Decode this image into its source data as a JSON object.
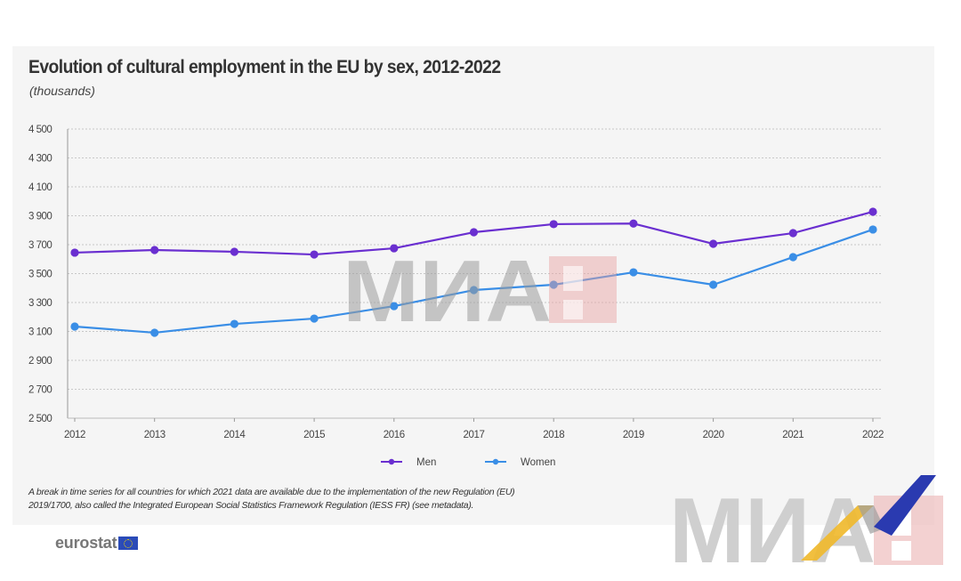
{
  "header": {
    "title": "Evolution of cultural employment in the EU by sex, 2012-2022",
    "subtitle": "(thousands)"
  },
  "footnote": {
    "line1": "A break in time series for all countries for which 2021 data are available due to the implementation of the new Regulation (EU)",
    "line2": "2019/1700, also called the Integrated European Social Statistics Framework Regulation (IESS FR) (see metadata)."
  },
  "logo": {
    "text": "eurostat",
    "icon": "eu-flag-icon"
  },
  "watermark": {
    "text": "МИА",
    "icon": "mia-logo-icon"
  },
  "chart_data": {
    "type": "line",
    "title": "Evolution of cultural employment in the EU by sex, 2012-2022",
    "subtitle": "(thousands)",
    "xlabel": "",
    "ylabel": "",
    "x": [
      "2012",
      "2013",
      "2014",
      "2015",
      "2016",
      "2017",
      "2018",
      "2019",
      "2020",
      "2021",
      "2022"
    ],
    "ylim": [
      2500,
      4500
    ],
    "yticks": [
      2500,
      2700,
      2900,
      3100,
      3300,
      3500,
      3700,
      3900,
      4100,
      4300,
      4500
    ],
    "ytick_labels": [
      "2 500",
      "2 700",
      "2 900",
      "3 100",
      "3 300",
      "3 500",
      "3 700",
      "3 900",
      "4 100",
      "4 300",
      "4 500"
    ],
    "grid": true,
    "legend_position": "bottom-center",
    "series": [
      {
        "name": "Men",
        "color": "#6a2fd0",
        "values": [
          3645,
          3663,
          3651,
          3632,
          3675,
          3786,
          3842,
          3846,
          3706,
          3780,
          3928
        ]
      },
      {
        "name": "Women",
        "color": "#3a8ee6",
        "values": [
          3134,
          3091,
          3152,
          3189,
          3275,
          3386,
          3423,
          3509,
          3423,
          3614,
          3805
        ]
      }
    ]
  }
}
